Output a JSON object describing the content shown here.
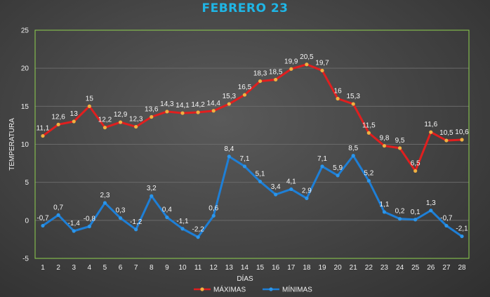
{
  "chart_data": {
    "type": "line",
    "title": "FEBRERO 23",
    "xlabel": "DÍAS",
    "ylabel": "TEMPERATURA",
    "ylim": [
      -5,
      25
    ],
    "yticks": [
      -5,
      0,
      5,
      10,
      15,
      20,
      25
    ],
    "grid": true,
    "legend_position": "bottom",
    "categories": [
      "1",
      "2",
      "3",
      "4",
      "5",
      "6",
      "7",
      "8",
      "9",
      "10",
      "11",
      "12",
      "13",
      "14",
      "15",
      "16",
      "17",
      "18",
      "19",
      "20",
      "21",
      "22",
      "23",
      "24",
      "25",
      "26",
      "27",
      "28"
    ],
    "series": [
      {
        "name": "MÁXIMAS",
        "color": "#e01f1f",
        "marker_color": "#f0b040",
        "values": [
          11.1,
          12.6,
          13,
          15,
          12.2,
          12.9,
          12.3,
          13.6,
          14.3,
          14.1,
          14.2,
          14.4,
          15.3,
          16.5,
          18.3,
          18.5,
          19.9,
          20.5,
          19.7,
          16,
          15.3,
          11.5,
          9.8,
          9.5,
          6.5,
          11.6,
          10.5,
          10.6
        ],
        "labels": [
          "11,1",
          "12,6",
          "13",
          "15",
          "12,2",
          "12,9",
          "12,3",
          "13,6",
          "14,3",
          "14,1",
          "14,2",
          "14,4",
          "15,3",
          "16,5",
          "18,3",
          "18,5",
          "19,9",
          "20,5",
          "19,7",
          "16",
          "15,3",
          "11,5",
          "9,8",
          "9,5",
          "6,5",
          "11,6",
          "10,5",
          "10,6"
        ]
      },
      {
        "name": "MÍNIMAS",
        "color": "#1e7fd6",
        "marker_color": "#2b95ea",
        "values": [
          -0.7,
          0.7,
          -1.4,
          -0.8,
          2.3,
          0.3,
          -1.2,
          3.2,
          0.4,
          -1.1,
          -2.2,
          0.6,
          8.4,
          7.1,
          5.1,
          3.4,
          4.1,
          2.9,
          7.1,
          5.9,
          8.5,
          5.2,
          1.1,
          0.2,
          0.1,
          1.3,
          -0.7,
          -2.1
        ],
        "labels": [
          "-0,7",
          "0,7",
          "-1,4",
          "-0,8",
          "2,3",
          "0,3",
          "-1,2",
          "3,2",
          "0,4",
          "-1,1",
          "-2,2",
          "0,6",
          "8,4",
          "7,1",
          "5,1",
          "3,4",
          "4,1",
          "2,9",
          "7,1",
          "5,9",
          "8,5",
          "5,2",
          "1,1",
          "0,2",
          "0,1",
          "1,3",
          "-0,7",
          "-2,1"
        ]
      }
    ]
  }
}
